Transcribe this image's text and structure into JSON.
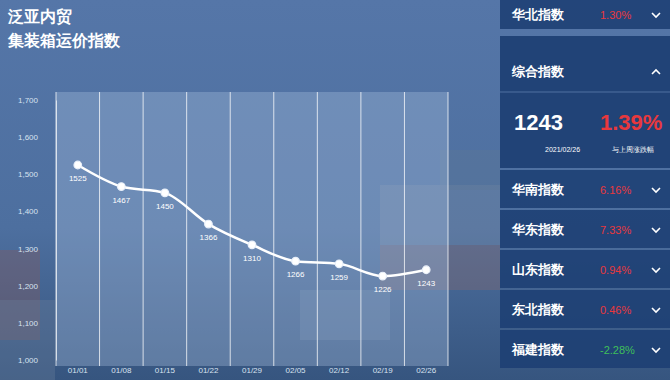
{
  "chart_data": {
    "type": "line",
    "title": "泛亚内贸",
    "subtitle": "集装箱运价指数",
    "categories": [
      "01/01",
      "01/08",
      "01/15",
      "01/22",
      "01/29",
      "02/05",
      "02/12",
      "02/19",
      "02/26"
    ],
    "values": [
      1525,
      1467,
      1450,
      1366,
      1310,
      1266,
      1259,
      1226,
      1243
    ],
    "color": "#ffffff",
    "marker": "circle",
    "ylim": [
      1000,
      1700
    ],
    "yticks": [
      {
        "value": 1000,
        "label": "1,000"
      },
      {
        "value": 1100,
        "label": "1,100"
      },
      {
        "value": 1200,
        "label": "1,200"
      },
      {
        "value": 1300,
        "label": "1,300"
      },
      {
        "value": 1400,
        "label": "1,400"
      },
      {
        "value": 1500,
        "label": "1,500"
      },
      {
        "value": 1600,
        "label": "1,600"
      },
      {
        "value": 1700,
        "label": "1,700"
      }
    ],
    "grid": true,
    "data_labels": true
  },
  "panel": {
    "composite": {
      "name": "综合指数",
      "value": "1243",
      "change": "1.39%",
      "color": "#e8383d",
      "date": "2021/02/26",
      "note": "与上周涨跌幅"
    },
    "items": [
      {
        "name": "华北指数",
        "change": "1.30%",
        "color": "#e8383d"
      },
      {
        "name": "华南指数",
        "change": "6.16%",
        "color": "#e8383d"
      },
      {
        "name": "华东指数",
        "change": "7.33%",
        "color": "#e8383d"
      },
      {
        "name": "山东指数",
        "change": "0.94%",
        "color": "#e8383d"
      },
      {
        "name": "东北指数",
        "change": "0.46%",
        "color": "#e8383d"
      },
      {
        "name": "福建指数",
        "change": "-2.28%",
        "color": "#3fbf5a"
      }
    ]
  }
}
